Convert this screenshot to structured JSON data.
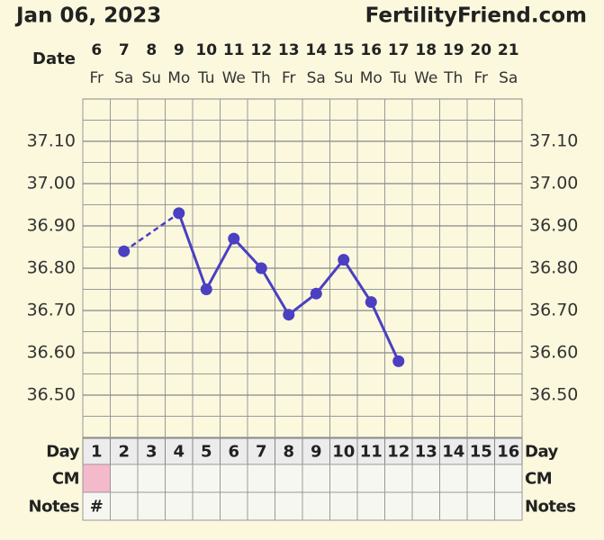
{
  "header": {
    "date": "Jan 06, 2023",
    "site": "FertilityFriend.com"
  },
  "chart_data": {
    "type": "line",
    "x_label": "Date",
    "categories": [
      "6",
      "7",
      "8",
      "9",
      "10",
      "11",
      "12",
      "13",
      "14",
      "15",
      "16",
      "17",
      "18",
      "19",
      "20",
      "21"
    ],
    "weekdays": [
      "Fr",
      "Sa",
      "Su",
      "Mo",
      "Tu",
      "We",
      "Th",
      "Fr",
      "Sa",
      "Su",
      "Mo",
      "Tu",
      "We",
      "Th",
      "Fr",
      "Sa"
    ],
    "values": [
      null,
      36.84,
      null,
      36.93,
      36.75,
      36.87,
      36.8,
      36.69,
      36.74,
      36.82,
      36.72,
      36.58,
      null,
      null,
      null,
      null
    ],
    "color": "#4b3fc2",
    "gap_style": "dashed",
    "ylim": [
      36.4,
      37.2
    ],
    "yticks": [
      {
        "value": 36.5,
        "label": "36.50"
      },
      {
        "value": 36.6,
        "label": "36.60"
      },
      {
        "value": 36.7,
        "label": "36.70"
      },
      {
        "value": 36.8,
        "label": "36.80"
      },
      {
        "value": 36.9,
        "label": "36.90"
      },
      {
        "value": 37.0,
        "label": "37.00"
      },
      {
        "value": 37.1,
        "label": "37.10"
      }
    ],
    "grid": true
  },
  "table": {
    "day_label": "Day",
    "days": [
      1,
      2,
      3,
      4,
      5,
      6,
      7,
      8,
      9,
      10,
      11,
      12,
      13,
      14,
      15,
      16
    ],
    "cm_label": "CM",
    "cm_first_color": "#f4b9cb",
    "notes_label": "Notes",
    "notes_first": "#"
  }
}
